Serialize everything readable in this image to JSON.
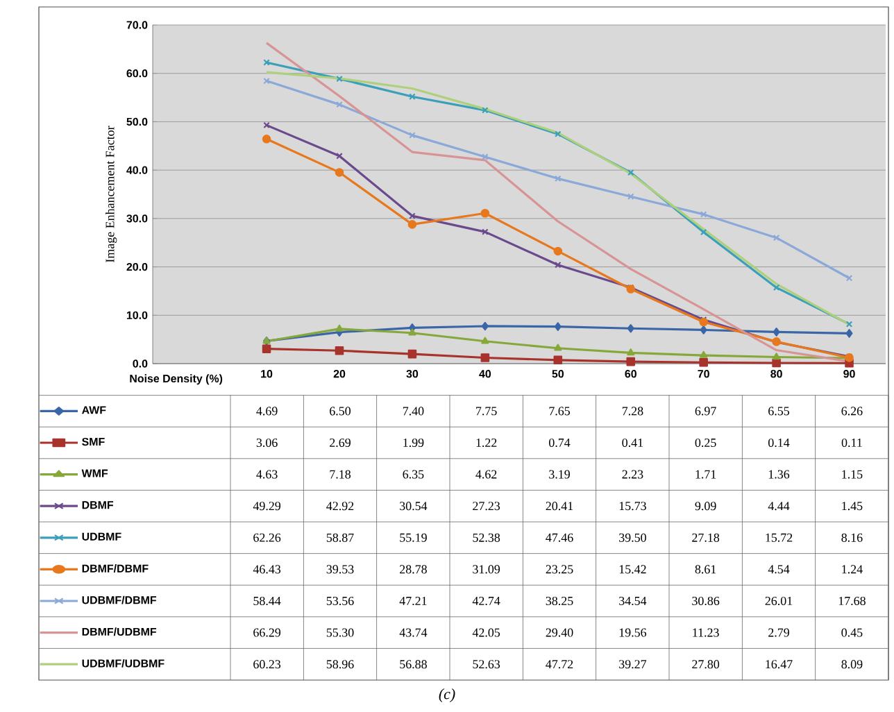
{
  "chart_data": {
    "type": "line",
    "ylabel": "Image Enhancement Factor",
    "xlabel": "Noise Density (%)",
    "categories": [
      "10",
      "20",
      "30",
      "40",
      "50",
      "60",
      "70",
      "80",
      "90"
    ],
    "ylim": [
      0,
      70
    ],
    "yticks": [
      {
        "value": 0,
        "label": "0.0"
      },
      {
        "value": 10,
        "label": "10.0"
      },
      {
        "value": 20,
        "label": "20.0"
      },
      {
        "value": 30,
        "label": "30.0"
      },
      {
        "value": 40,
        "label": "40.0"
      },
      {
        "value": 50,
        "label": "50.0"
      },
      {
        "value": 60,
        "label": "60.0"
      },
      {
        "value": 70,
        "label": "70.0"
      }
    ],
    "grid": "y",
    "legend": "bottom",
    "annotations": [
      "(c)"
    ],
    "series": [
      {
        "name": "AWF",
        "color": "#3a66a8",
        "marker": "diamond",
        "values": [
          4.69,
          6.5,
          7.4,
          7.75,
          7.65,
          7.28,
          6.97,
          6.55,
          6.26
        ],
        "value_labels": [
          "4.69",
          "6.50",
          "7.40",
          "7.75",
          "7.65",
          "7.28",
          "6.97",
          "6.55",
          "6.26"
        ]
      },
      {
        "name": "SMF",
        "color": "#a8322c",
        "marker": "square",
        "values": [
          3.06,
          2.69,
          1.99,
          1.22,
          0.74,
          0.41,
          0.25,
          0.14,
          0.11
        ],
        "value_labels": [
          "3.06",
          "2.69",
          "1.99",
          "1.22",
          "0.74",
          "0.41",
          "0.25",
          "0.14",
          "0.11"
        ]
      },
      {
        "name": "WMF",
        "color": "#86a83a",
        "marker": "triangle",
        "values": [
          4.63,
          7.18,
          6.35,
          4.62,
          3.19,
          2.23,
          1.71,
          1.36,
          1.15
        ],
        "value_labels": [
          "4.63",
          "7.18",
          "6.35",
          "4.62",
          "3.19",
          "2.23",
          "1.71",
          "1.36",
          "1.15"
        ]
      },
      {
        "name": "DBMF",
        "color": "#6a4a8c",
        "marker": "cross",
        "values": [
          49.29,
          42.92,
          30.54,
          27.23,
          20.41,
          15.73,
          9.09,
          4.44,
          1.45
        ],
        "value_labels": [
          "49.29",
          "42.92",
          "30.54",
          "27.23",
          "20.41",
          "15.73",
          "9.09",
          "4.44",
          "1.45"
        ]
      },
      {
        "name": "UDBMF",
        "color": "#3a9fb8",
        "marker": "cross",
        "values": [
          62.26,
          58.87,
          55.19,
          52.38,
          47.46,
          39.5,
          27.18,
          15.72,
          8.16
        ],
        "value_labels": [
          "62.26",
          "58.87",
          "55.19",
          "52.38",
          "47.46",
          "39.50",
          "27.18",
          "15.72",
          "8.16"
        ]
      },
      {
        "name": "DBMF/DBMF",
        "color": "#e8781e",
        "marker": "circle",
        "values": [
          46.43,
          39.53,
          28.78,
          31.09,
          23.25,
          15.42,
          8.61,
          4.54,
          1.24
        ],
        "value_labels": [
          "46.43",
          "39.53",
          "28.78",
          "31.09",
          "23.25",
          "15.42",
          "8.61",
          "4.54",
          "1.24"
        ]
      },
      {
        "name": "UDBMF/DBMF",
        "color": "#8aa8d8",
        "marker": "cross",
        "values": [
          58.44,
          53.56,
          47.21,
          42.74,
          38.25,
          34.54,
          30.86,
          26.01,
          17.68
        ],
        "value_labels": [
          "58.44",
          "53.56",
          "47.21",
          "42.74",
          "38.25",
          "34.54",
          "30.86",
          "26.01",
          "17.68"
        ]
      },
      {
        "name": "DBMF/UDBMF",
        "color": "#d89494",
        "marker": "none",
        "values": [
          66.29,
          55.3,
          43.74,
          42.05,
          29.4,
          19.56,
          11.23,
          2.79,
          0.45
        ],
        "value_labels": [
          "66.29",
          "55.30",
          "43.74",
          "42.05",
          "29.40",
          "19.56",
          "11.23",
          "2.79",
          "0.45"
        ]
      },
      {
        "name": "UDBMF/UDBMF",
        "color": "#aed07c",
        "marker": "none",
        "values": [
          60.23,
          58.96,
          56.88,
          52.63,
          47.72,
          39.27,
          27.8,
          16.47,
          8.09
        ],
        "value_labels": [
          "60.23",
          "58.96",
          "56.88",
          "52.63",
          "47.72",
          "39.27",
          "27.80",
          "16.47",
          "8.09"
        ]
      }
    ]
  }
}
